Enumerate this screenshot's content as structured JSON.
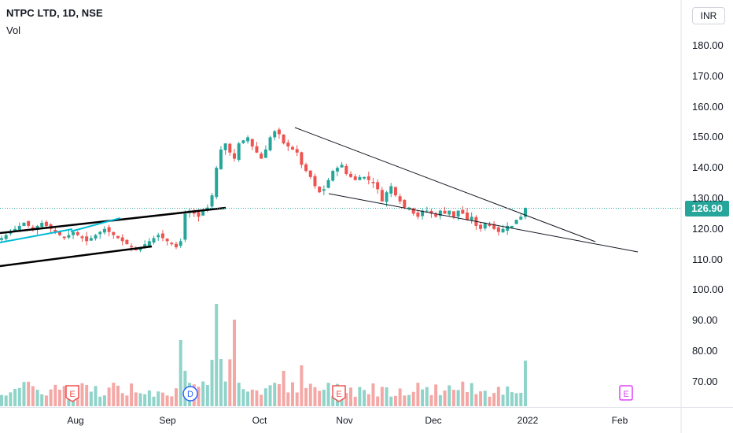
{
  "header": {
    "title": "NTPC LTD, 1D, NSE",
    "volume_label": "Vol",
    "currency": "INR"
  },
  "chart_data": {
    "type": "candlestick",
    "symbol": "NTPC LTD",
    "interval": "1D",
    "exchange": "NSE",
    "last_price": "126.90",
    "ylim": [
      62,
      195
    ],
    "y_ticks": [
      "180.00",
      "170.00",
      "160.00",
      "150.00",
      "140.00",
      "130.00",
      "120.00",
      "110.00",
      "100.00",
      "90.00",
      "80.00",
      "70.00"
    ],
    "x_ticks": [
      "Aug",
      "Sep",
      "Oct",
      "Nov",
      "Dec",
      "2022",
      "Feb"
    ],
    "events": [
      {
        "type": "earnings",
        "label": "E",
        "date": "Aug"
      },
      {
        "type": "dividend",
        "label": "D",
        "date": "Sep"
      },
      {
        "type": "earnings",
        "label": "E",
        "date": "Nov"
      },
      {
        "type": "earnings",
        "label": "E",
        "date": "Feb"
      }
    ],
    "colors": {
      "up": "#26a69a",
      "down": "#ef5350",
      "vol_up": "#8fd3c9",
      "vol_down": "#f4a8a6",
      "cyan_line": "#00bcd4"
    }
  }
}
